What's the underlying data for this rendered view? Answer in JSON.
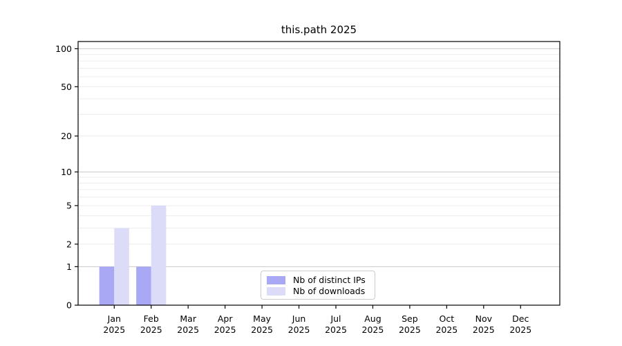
{
  "chart_data": {
    "type": "bar",
    "title": "this.path 2025",
    "months": [
      "Jan",
      "Feb",
      "Mar",
      "Apr",
      "May",
      "Jun",
      "Jul",
      "Aug",
      "Sep",
      "Oct",
      "Nov",
      "Dec"
    ],
    "year": "2025",
    "series": [
      {
        "name": "Nb of distinct IPs",
        "color": "#a8a8f5",
        "values": [
          1,
          1,
          0,
          0,
          0,
          0,
          0,
          0,
          0,
          0,
          0,
          0
        ]
      },
      {
        "name": "Nb of downloads",
        "color": "#dcdcf8",
        "values": [
          3,
          5,
          0,
          0,
          0,
          0,
          0,
          0,
          0,
          0,
          0,
          0
        ]
      }
    ],
    "y_ticks": [
      0,
      1,
      2,
      5,
      10,
      20,
      50,
      100
    ],
    "y_scale": "log1p",
    "ylim": [
      0,
      114
    ],
    "grid": "both",
    "legend_position": "lower-center"
  },
  "colors": {
    "axis": "#000000",
    "text": "#000000",
    "grid_major": "#c9c9c9",
    "grid_minor": "#ececec",
    "legend_border": "#cccccc",
    "background": "#ffffff"
  }
}
